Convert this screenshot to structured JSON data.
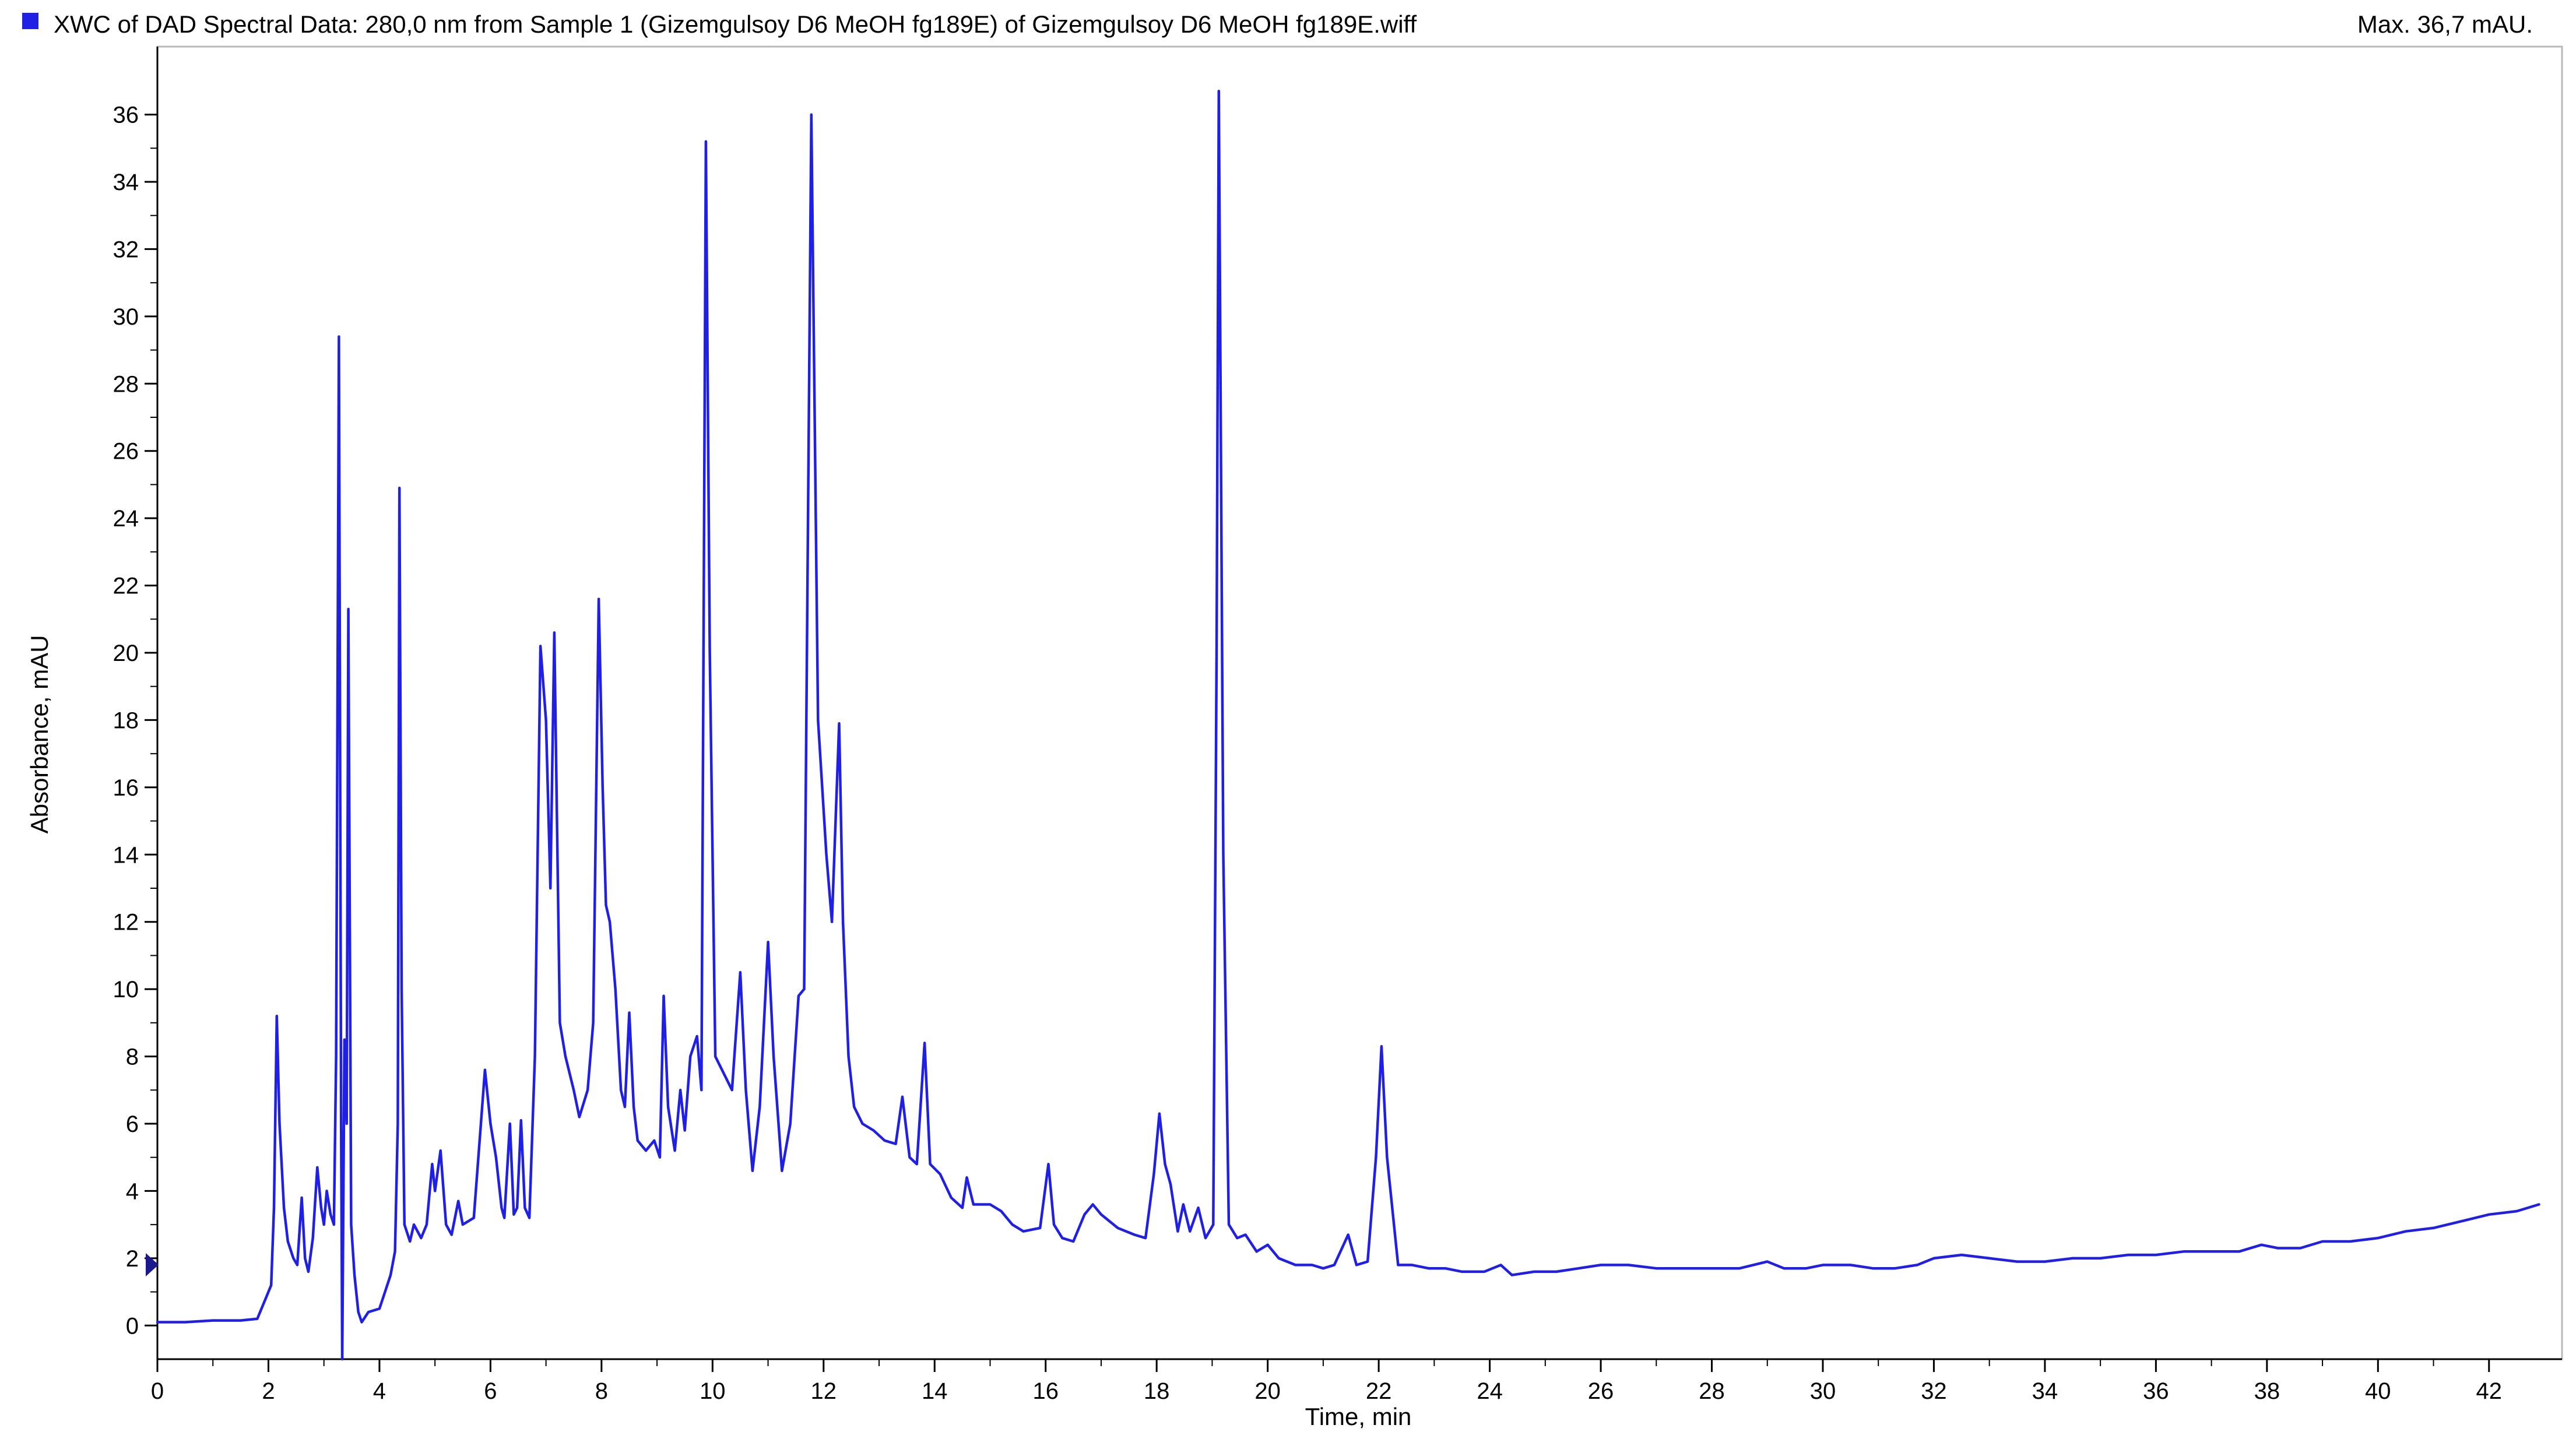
{
  "header": {
    "title": "XWC of DAD Spectral Data: 280,0 nm from Sample 1 (Gizemgulsoy D6 MeOH fg189E) of Gizemgulsoy D6 MeOH fg189E.wiff",
    "max_label": "Max. 36,7 mAU."
  },
  "chart_data": {
    "type": "line",
    "title": "XWC of DAD Spectral Data: 280,0 nm from Sample 1 (Gizemgulsoy D6 MeOH fg189E) of Gizemgulsoy D6 MeOH fg189E.wiff",
    "xlabel": "Time, min",
    "ylabel": "Absorbance, mAU",
    "xlim": [
      0,
      43
    ],
    "ylim": [
      -1,
      37.5
    ],
    "x_ticks": [
      0,
      2,
      4,
      6,
      8,
      10,
      12,
      14,
      16,
      18,
      20,
      22,
      24,
      26,
      28,
      30,
      32,
      34,
      36,
      38,
      40,
      42
    ],
    "y_ticks": [
      0,
      2,
      4,
      6,
      8,
      10,
      12,
      14,
      16,
      18,
      20,
      22,
      24,
      26,
      28,
      30,
      32,
      34,
      36
    ],
    "grid": false,
    "legend": "none",
    "colors": {
      "series": "#1f1fe6",
      "marker": "#1a1a8c"
    },
    "series": [
      {
        "points": [
          [
            0,
            0.1
          ],
          [
            0.5,
            0.1
          ],
          [
            1.0,
            0.15
          ],
          [
            1.5,
            0.15
          ],
          [
            1.8,
            0.2
          ],
          [
            1.95,
            0.8
          ],
          [
            2.05,
            1.2
          ],
          [
            2.1,
            3.5
          ],
          [
            2.15,
            9.2
          ],
          [
            2.2,
            6.0
          ],
          [
            2.28,
            3.5
          ],
          [
            2.35,
            2.5
          ],
          [
            2.45,
            2.0
          ],
          [
            2.52,
            1.8
          ],
          [
            2.6,
            3.8
          ],
          [
            2.66,
            2.0
          ],
          [
            2.72,
            1.6
          ],
          [
            2.8,
            2.6
          ],
          [
            2.88,
            4.7
          ],
          [
            2.95,
            3.5
          ],
          [
            3.0,
            3.0
          ],
          [
            3.05,
            4.0
          ],
          [
            3.12,
            3.3
          ],
          [
            3.18,
            3.0
          ],
          [
            3.22,
            8.0
          ],
          [
            3.27,
            29.4
          ],
          [
            3.31,
            6.0
          ],
          [
            3.33,
            -1.0
          ],
          [
            3.37,
            8.5
          ],
          [
            3.41,
            6.0
          ],
          [
            3.44,
            21.3
          ],
          [
            3.49,
            3.0
          ],
          [
            3.55,
            1.5
          ],
          [
            3.62,
            0.4
          ],
          [
            3.68,
            0.1
          ],
          [
            3.8,
            0.4
          ],
          [
            4.0,
            0.5
          ],
          [
            4.1,
            1.0
          ],
          [
            4.2,
            1.5
          ],
          [
            4.28,
            2.2
          ],
          [
            4.33,
            6.0
          ],
          [
            4.36,
            24.9
          ],
          [
            4.4,
            10.0
          ],
          [
            4.45,
            3.0
          ],
          [
            4.55,
            2.5
          ],
          [
            4.62,
            3.0
          ],
          [
            4.75,
            2.6
          ],
          [
            4.85,
            3.0
          ],
          [
            4.95,
            4.8
          ],
          [
            5.0,
            4.0
          ],
          [
            5.1,
            5.2
          ],
          [
            5.2,
            3.0
          ],
          [
            5.3,
            2.7
          ],
          [
            5.42,
            3.7
          ],
          [
            5.5,
            3.0
          ],
          [
            5.7,
            3.2
          ],
          [
            5.9,
            7.6
          ],
          [
            6.0,
            6.0
          ],
          [
            6.1,
            5.0
          ],
          [
            6.2,
            3.5
          ],
          [
            6.25,
            3.2
          ],
          [
            6.35,
            6.0
          ],
          [
            6.42,
            3.3
          ],
          [
            6.48,
            3.5
          ],
          [
            6.55,
            6.1
          ],
          [
            6.62,
            3.5
          ],
          [
            6.7,
            3.2
          ],
          [
            6.8,
            8.0
          ],
          [
            6.9,
            20.2
          ],
          [
            7.0,
            18.0
          ],
          [
            7.08,
            13.0
          ],
          [
            7.15,
            20.6
          ],
          [
            7.25,
            9.0
          ],
          [
            7.35,
            8.0
          ],
          [
            7.5,
            7.0
          ],
          [
            7.6,
            6.2
          ],
          [
            7.75,
            7.0
          ],
          [
            7.85,
            9.0
          ],
          [
            7.95,
            21.6
          ],
          [
            8.02,
            16.0
          ],
          [
            8.08,
            12.5
          ],
          [
            8.15,
            12.0
          ],
          [
            8.25,
            10.0
          ],
          [
            8.35,
            7.0
          ],
          [
            8.42,
            6.5
          ],
          [
            8.5,
            9.3
          ],
          [
            8.58,
            6.5
          ],
          [
            8.65,
            5.5
          ],
          [
            8.8,
            5.2
          ],
          [
            8.95,
            5.5
          ],
          [
            9.05,
            5.0
          ],
          [
            9.12,
            9.8
          ],
          [
            9.2,
            6.5
          ],
          [
            9.32,
            5.2
          ],
          [
            9.42,
            7.0
          ],
          [
            9.5,
            5.8
          ],
          [
            9.6,
            8.0
          ],
          [
            9.72,
            8.6
          ],
          [
            9.8,
            7.0
          ],
          [
            9.88,
            35.2
          ],
          [
            9.95,
            20.0
          ],
          [
            10.05,
            8.0
          ],
          [
            10.2,
            7.5
          ],
          [
            10.35,
            7.0
          ],
          [
            10.5,
            10.5
          ],
          [
            10.6,
            7.0
          ],
          [
            10.72,
            4.6
          ],
          [
            10.85,
            6.5
          ],
          [
            11.0,
            11.4
          ],
          [
            11.1,
            8.0
          ],
          [
            11.25,
            4.6
          ],
          [
            11.4,
            6.0
          ],
          [
            11.55,
            9.8
          ],
          [
            11.65,
            10.0
          ],
          [
            11.78,
            36.0
          ],
          [
            11.9,
            18.0
          ],
          [
            12.05,
            14.0
          ],
          [
            12.15,
            12.0
          ],
          [
            12.28,
            17.9
          ],
          [
            12.35,
            12.0
          ],
          [
            12.45,
            8.0
          ],
          [
            12.55,
            6.5
          ],
          [
            12.7,
            6.0
          ],
          [
            12.9,
            5.8
          ],
          [
            13.1,
            5.5
          ],
          [
            13.3,
            5.4
          ],
          [
            13.42,
            6.8
          ],
          [
            13.55,
            5.0
          ],
          [
            13.68,
            4.8
          ],
          [
            13.82,
            8.4
          ],
          [
            13.92,
            4.8
          ],
          [
            14.1,
            4.5
          ],
          [
            14.3,
            3.8
          ],
          [
            14.5,
            3.5
          ],
          [
            14.58,
            4.4
          ],
          [
            14.7,
            3.6
          ],
          [
            15.0,
            3.6
          ],
          [
            15.2,
            3.4
          ],
          [
            15.4,
            3.0
          ],
          [
            15.6,
            2.8
          ],
          [
            15.9,
            2.9
          ],
          [
            16.05,
            4.8
          ],
          [
            16.15,
            3.0
          ],
          [
            16.3,
            2.6
          ],
          [
            16.5,
            2.5
          ],
          [
            16.7,
            3.3
          ],
          [
            16.85,
            3.6
          ],
          [
            17.0,
            3.3
          ],
          [
            17.3,
            2.9
          ],
          [
            17.6,
            2.7
          ],
          [
            17.8,
            2.6
          ],
          [
            17.95,
            4.5
          ],
          [
            18.05,
            6.3
          ],
          [
            18.15,
            4.8
          ],
          [
            18.25,
            4.2
          ],
          [
            18.38,
            2.8
          ],
          [
            18.48,
            3.6
          ],
          [
            18.6,
            2.8
          ],
          [
            18.75,
            3.5
          ],
          [
            18.88,
            2.6
          ],
          [
            19.02,
            3.0
          ],
          [
            19.08,
            20.0
          ],
          [
            19.12,
            36.7
          ],
          [
            19.2,
            14.0
          ],
          [
            19.3,
            3.0
          ],
          [
            19.45,
            2.6
          ],
          [
            19.6,
            2.7
          ],
          [
            19.8,
            2.2
          ],
          [
            20.0,
            2.4
          ],
          [
            20.2,
            2.0
          ],
          [
            20.5,
            1.8
          ],
          [
            20.8,
            1.8
          ],
          [
            21.0,
            1.7
          ],
          [
            21.2,
            1.8
          ],
          [
            21.45,
            2.7
          ],
          [
            21.6,
            1.8
          ],
          [
            21.8,
            1.9
          ],
          [
            21.95,
            5.0
          ],
          [
            22.05,
            8.3
          ],
          [
            22.15,
            5.0
          ],
          [
            22.35,
            1.8
          ],
          [
            22.6,
            1.8
          ],
          [
            22.9,
            1.7
          ],
          [
            23.2,
            1.7
          ],
          [
            23.5,
            1.6
          ],
          [
            23.9,
            1.6
          ],
          [
            24.2,
            1.8
          ],
          [
            24.4,
            1.5
          ],
          [
            24.8,
            1.6
          ],
          [
            25.2,
            1.6
          ],
          [
            25.6,
            1.7
          ],
          [
            26.0,
            1.8
          ],
          [
            26.5,
            1.8
          ],
          [
            27.0,
            1.7
          ],
          [
            27.5,
            1.7
          ],
          [
            28.0,
            1.7
          ],
          [
            28.5,
            1.7
          ],
          [
            29.0,
            1.9
          ],
          [
            29.3,
            1.7
          ],
          [
            29.7,
            1.7
          ],
          [
            30.0,
            1.8
          ],
          [
            30.5,
            1.8
          ],
          [
            30.9,
            1.7
          ],
          [
            31.3,
            1.7
          ],
          [
            31.7,
            1.8
          ],
          [
            32.0,
            2.0
          ],
          [
            32.5,
            2.1
          ],
          [
            33.0,
            2.0
          ],
          [
            33.5,
            1.9
          ],
          [
            34.0,
            1.9
          ],
          [
            34.5,
            2.0
          ],
          [
            35.0,
            2.0
          ],
          [
            35.5,
            2.1
          ],
          [
            36.0,
            2.1
          ],
          [
            36.5,
            2.2
          ],
          [
            37.0,
            2.2
          ],
          [
            37.5,
            2.2
          ],
          [
            37.9,
            2.4
          ],
          [
            38.2,
            2.3
          ],
          [
            38.6,
            2.3
          ],
          [
            39.0,
            2.5
          ],
          [
            39.5,
            2.5
          ],
          [
            40.0,
            2.6
          ],
          [
            40.5,
            2.8
          ],
          [
            41.0,
            2.9
          ],
          [
            41.5,
            3.1
          ],
          [
            42.0,
            3.3
          ],
          [
            42.5,
            3.4
          ],
          [
            42.9,
            3.6
          ]
        ]
      }
    ]
  }
}
